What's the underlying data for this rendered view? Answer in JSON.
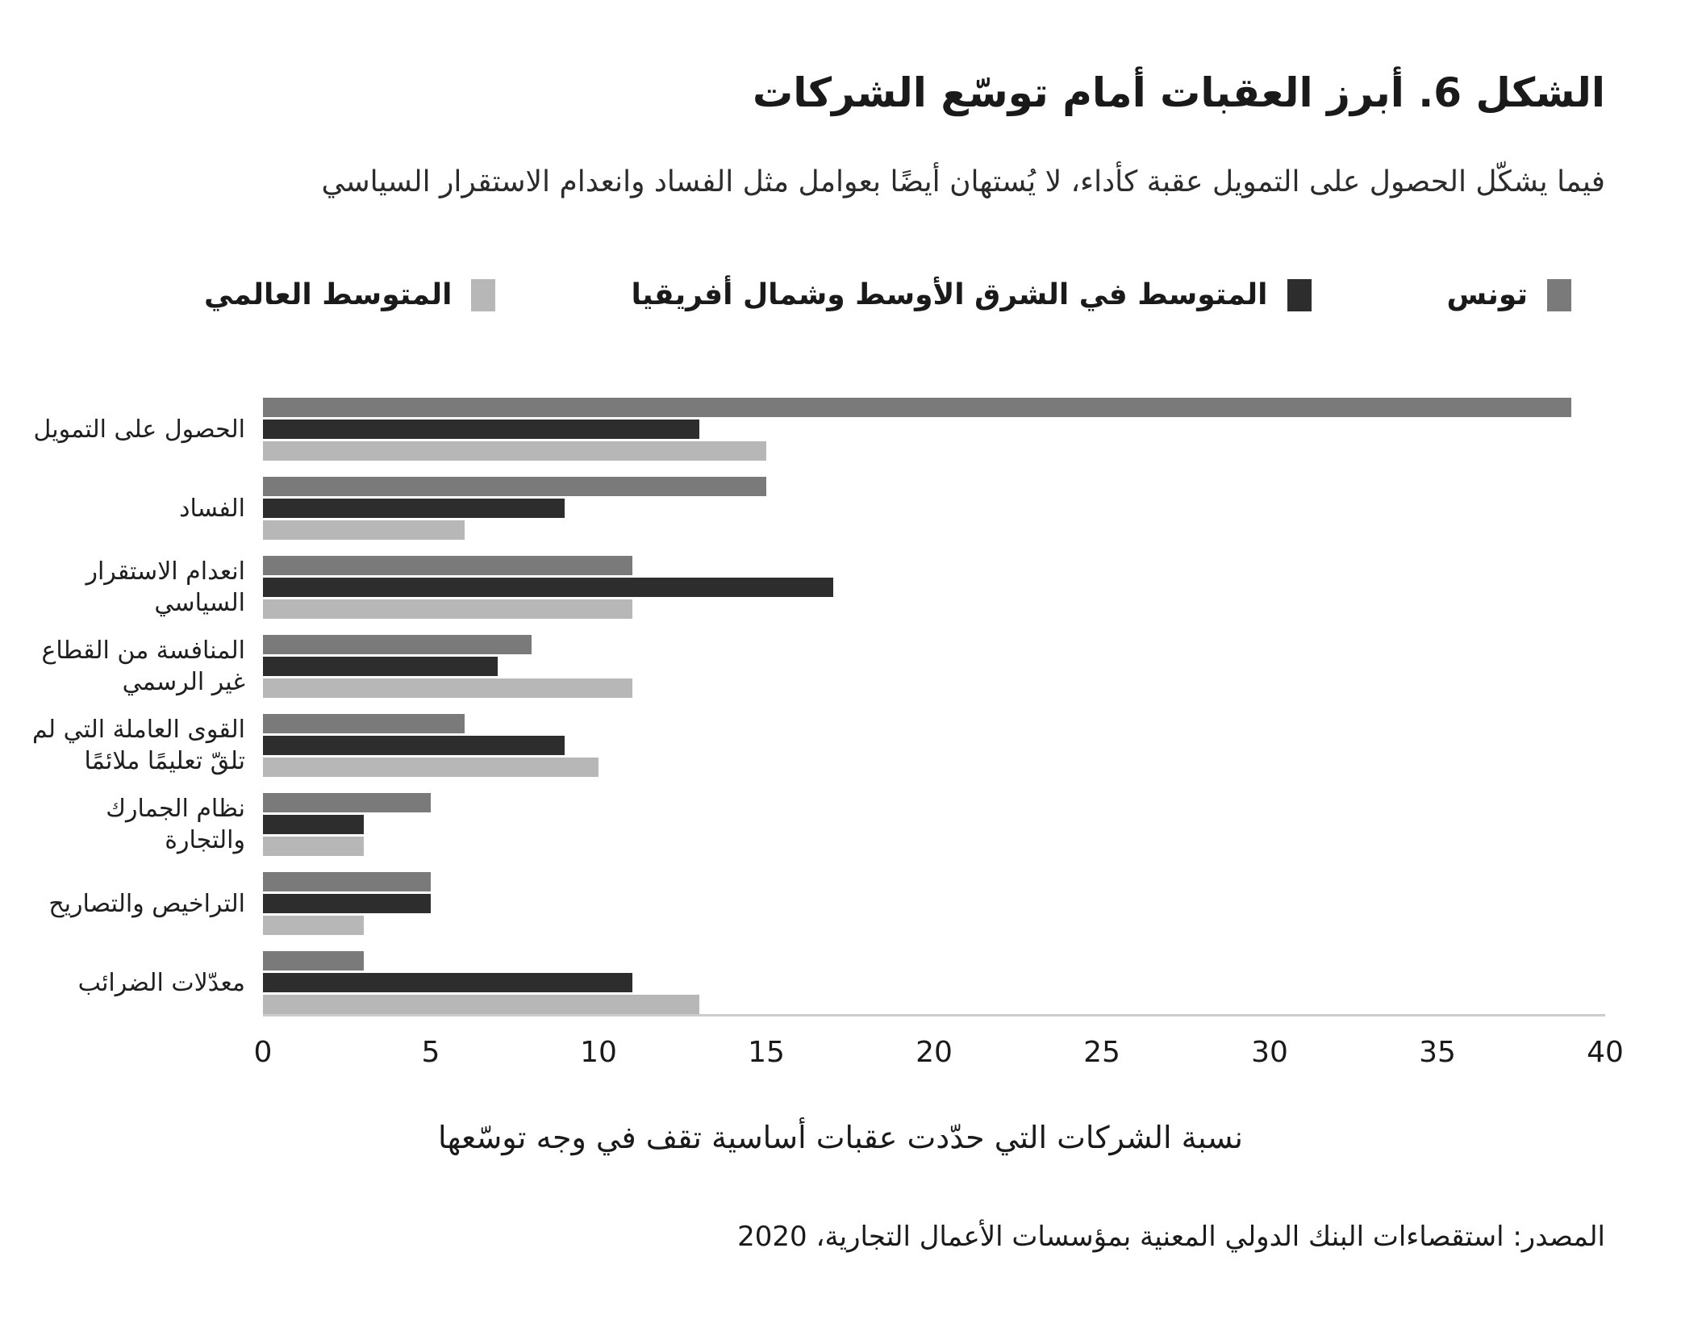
{
  "header": {
    "title": "الشكل 6. أبرز العقبات أمام توسّع الشركات",
    "subtitle": "فيما يشكّل الحصول على التمويل عقبة كأداء، لا يُستهان أيضًا بعوامل مثل الفساد وانعدام الاستقرار السياسي"
  },
  "chart_data": {
    "type": "bar",
    "orientation": "horizontal",
    "title": "الشكل 6. أبرز العقبات أمام توسّع الشركات",
    "xlabel": "نسبة الشركات التي حدّدت عقبات أساسية تقف في وجه توسّعها",
    "ylabel": "",
    "xlim": [
      0,
      40
    ],
    "xticks": [
      0,
      5,
      10,
      15,
      20,
      25,
      30,
      35,
      40
    ],
    "grid": false,
    "legend_position": "top",
    "categories": [
      "الحصول على التمويل",
      "الفساد",
      "انعدام الاستقرار\nالسياسي",
      "المنافسة من القطاع\nغير الرسمي",
      "القوى العاملة التي لم\nتلقّ تعليمًا ملائمًا",
      "نظام الجمارك والتجارة",
      "التراخيص والتصاريح",
      "معدّلات الضرائب"
    ],
    "series": [
      {
        "key": "tunisia",
        "name": "تونس",
        "color": "#7a7a7a",
        "values": [
          39,
          15,
          11,
          8,
          6,
          5,
          5,
          3
        ]
      },
      {
        "key": "mena-average",
        "name": "المتوسط في الشرق الأوسط وشمال أفريقيا",
        "color": "#2d2d2d",
        "values": [
          13,
          9,
          17,
          7,
          9,
          3,
          5,
          11
        ]
      },
      {
        "key": "world-average",
        "name": "المتوسط العالمي",
        "color": "#b7b7b7",
        "values": [
          15,
          6,
          11,
          11,
          10,
          3,
          3,
          13
        ]
      }
    ]
  },
  "footer": {
    "source": "المصدر: استقصاءات البنك الدولي المعنية بمؤسسات الأعمال التجارية، 2020"
  }
}
